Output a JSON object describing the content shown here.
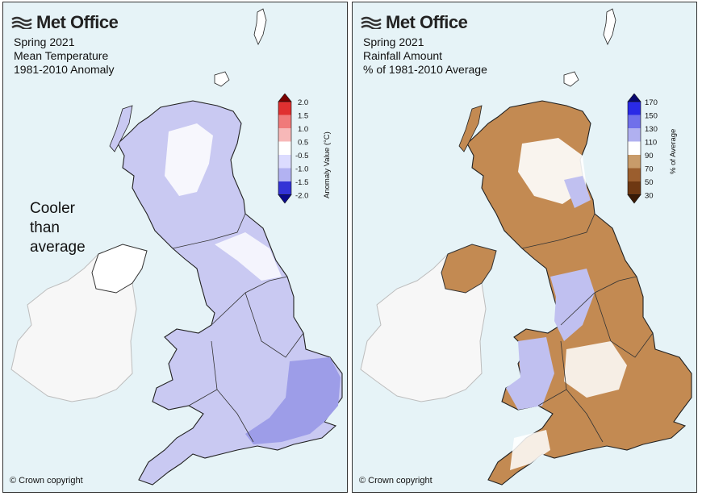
{
  "brand": "Met Office",
  "copyright": "© Crown copyright",
  "panels": [
    {
      "title_lines": [
        "Spring 2021",
        "Mean Temperature",
        "1981-2010 Anomaly"
      ],
      "annotation_lines": [
        "Cooler",
        "than",
        "average"
      ],
      "legend": {
        "label": "Anomaly Value (°C)",
        "ticks": [
          "2.0",
          "1.5",
          "1.0",
          "0.5",
          "-0.5",
          "-1.0",
          "-1.5",
          "-2.0"
        ],
        "colors": [
          "#7a0000",
          "#e03030",
          "#f07a7a",
          "#f7b8b8",
          "#fde0e0",
          "#ffffff",
          "#dcdcff",
          "#b2b2f2",
          "#7b7be8",
          "#3333d6",
          "#0a0a8a"
        ]
      }
    },
    {
      "title_lines": [
        "Spring 2021",
        "Rainfall Amount",
        "% of 1981-2010 Average"
      ],
      "legend": {
        "label": "% of Average",
        "ticks": [
          "170",
          "150",
          "130",
          "110",
          "90",
          "70",
          "50",
          "30"
        ],
        "colors": [
          "#08086e",
          "#2a2ae6",
          "#7070ea",
          "#b0b0f0",
          "#dcdcf8",
          "#ffffff",
          "#c89b6a",
          "#9b5e2e",
          "#6e3812",
          "#3a1a05"
        ]
      }
    }
  ],
  "map_colors": {
    "sea": "#e6f3f7",
    "ireland": "#f7f7f7",
    "temp_fill": "#c9c9f2",
    "temp_cool": "#9d9de8",
    "temp_white": "#ffffff",
    "rain_dry": "#c38a52",
    "rain_wet": "#c0c0f0",
    "rain_white": "#ffffff"
  }
}
